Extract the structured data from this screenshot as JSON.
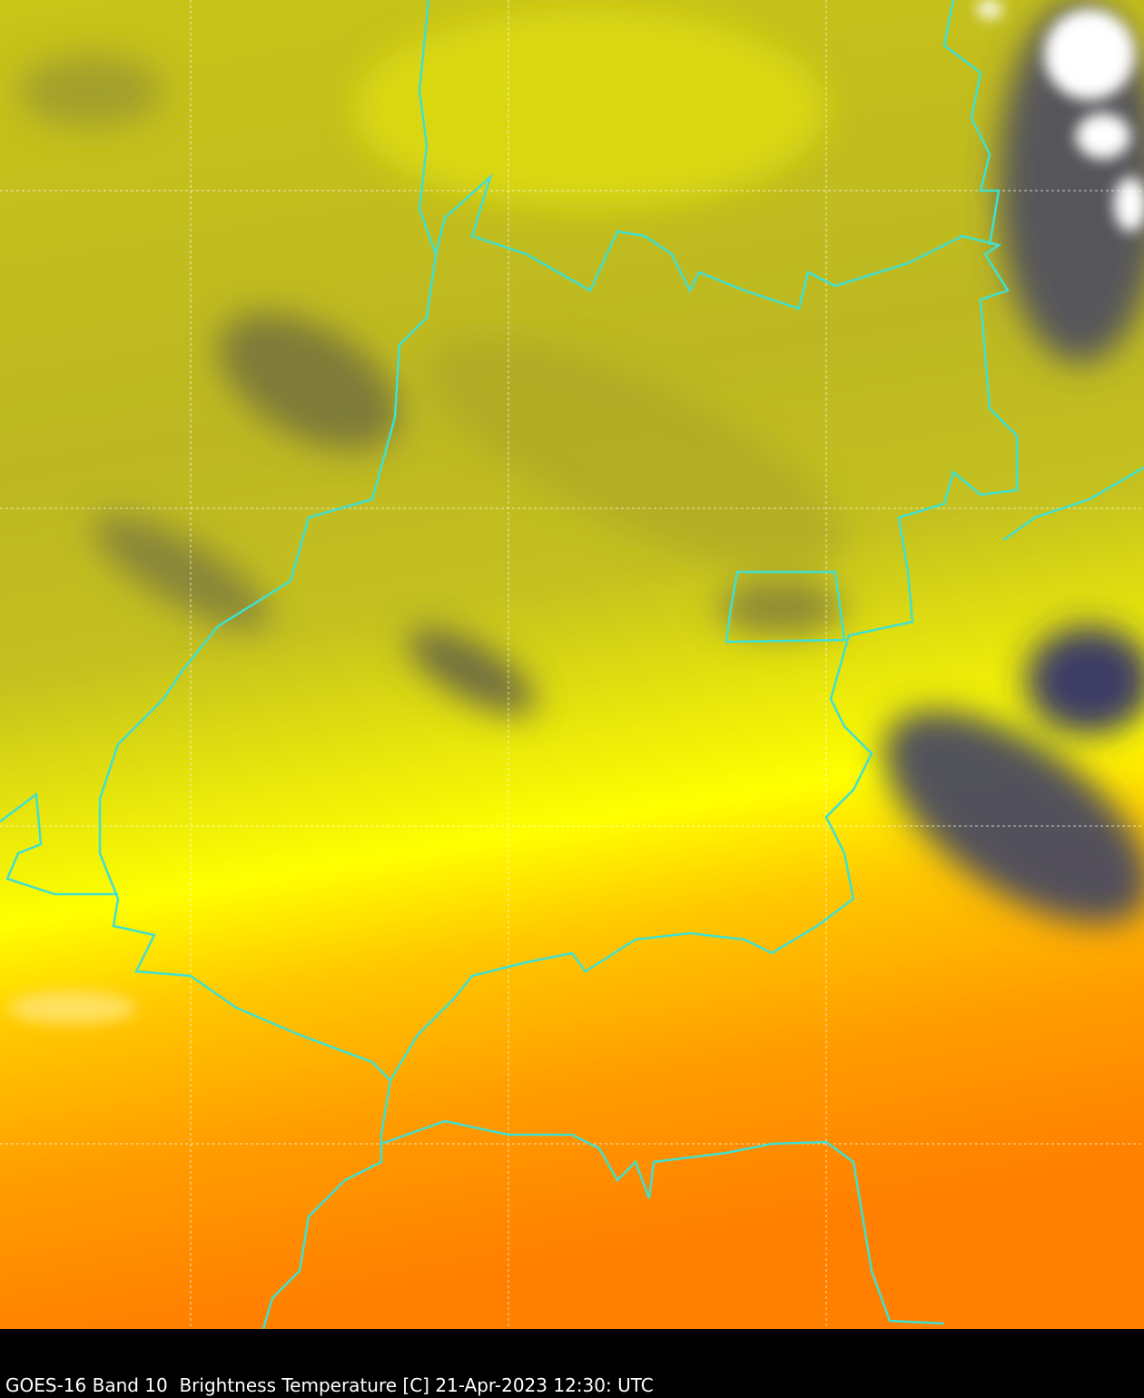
{
  "caption": "GOES-16 Band 10  Brightness Temperature [C] 21-Apr-2023 12:30: UTC",
  "map": {
    "satellite": "GOES-16",
    "band": "Band 10",
    "product": "Brightness Temperature [C]",
    "colors": {
      "cold_cloud": "#1a1a80",
      "mid_dark": "#4a4a6a",
      "olive": "#b8b520",
      "yellow": "#ffff00",
      "orange": "#ff8000",
      "borders": "#40e0d0",
      "grid": "#ffffff"
    },
    "gridlines": true
  }
}
